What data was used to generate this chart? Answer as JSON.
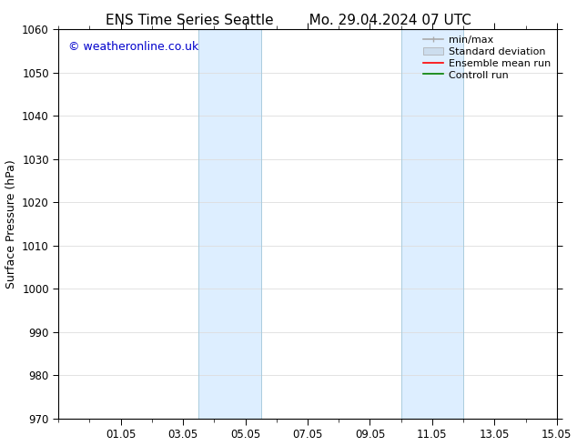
{
  "title_left": "ENS Time Series Seattle",
  "title_right": "Mo. 29.04.2024 07 UTC",
  "ylabel": "Surface Pressure (hPa)",
  "ylim": [
    970,
    1060
  ],
  "yticks": [
    970,
    980,
    990,
    1000,
    1010,
    1020,
    1030,
    1040,
    1050,
    1060
  ],
  "xlim": [
    0,
    16
  ],
  "xtick_labels": [
    "01.05",
    "03.05",
    "05.05",
    "07.05",
    "09.05",
    "11.05",
    "13.05",
    "15.05"
  ],
  "xtick_positions": [
    2,
    4,
    6,
    8,
    10,
    12,
    14,
    16
  ],
  "shaded_bands": [
    {
      "x_start": 4.5,
      "x_end": 6.5
    },
    {
      "x_start": 11.0,
      "x_end": 13.0
    }
  ],
  "shaded_color": "#ddeeff",
  "band_edge_color": "#aaccdd",
  "watermark_text": "© weatheronline.co.uk",
  "watermark_color": "#0000cc",
  "watermark_fontsize": 9,
  "legend_entries": [
    {
      "label": "min/max",
      "color": "#aaaaaa",
      "lw": 1.2
    },
    {
      "label": "Standard deviation",
      "color": "#ccddee",
      "lw": 8
    },
    {
      "label": "Ensemble mean run",
      "color": "red",
      "lw": 1.2
    },
    {
      "label": "Controll run",
      "color": "green",
      "lw": 1.2
    }
  ],
  "title_fontsize": 11,
  "tick_fontsize": 8.5,
  "ylabel_fontsize": 9,
  "legend_fontsize": 8,
  "background_color": "#ffffff",
  "grid_color": "#dddddd",
  "spine_color": "#000000"
}
